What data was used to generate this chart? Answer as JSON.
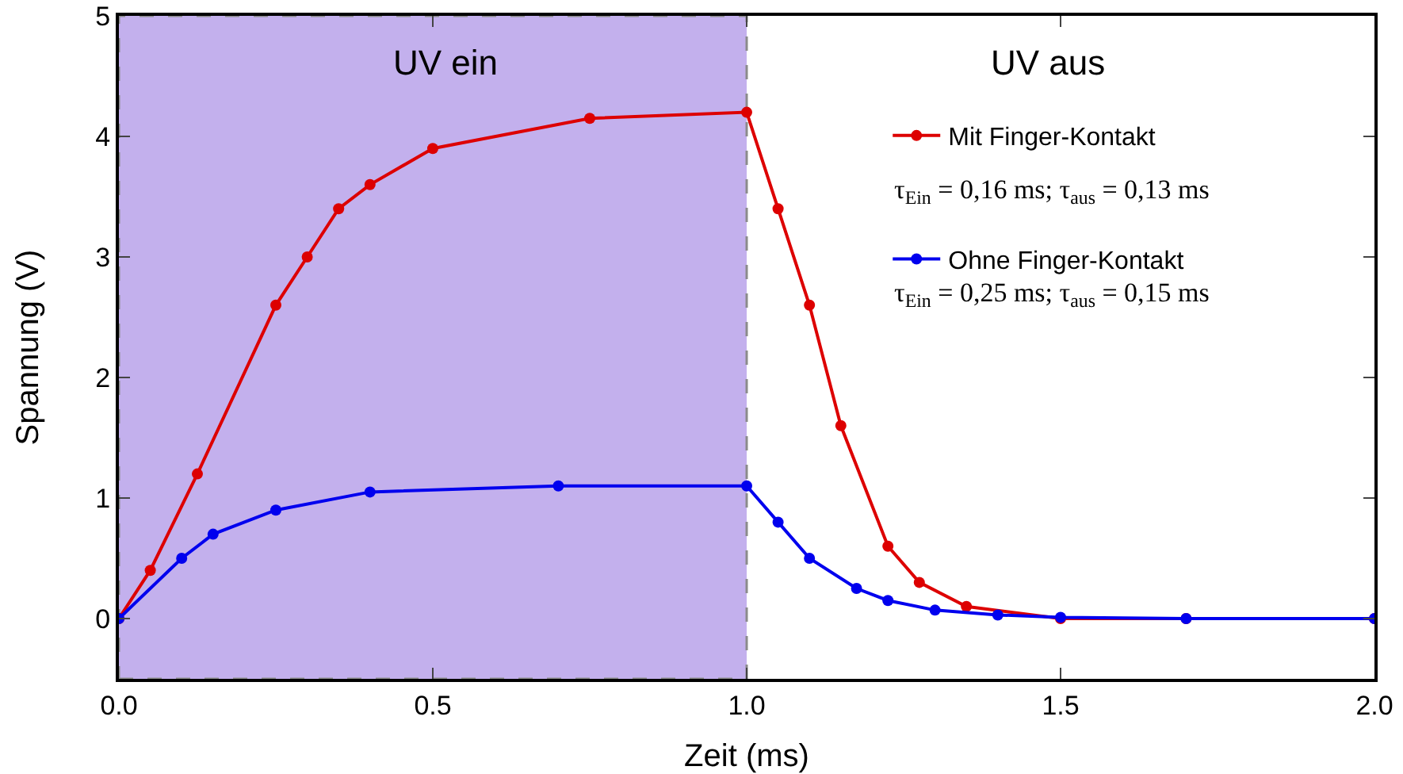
{
  "chart_data": {
    "type": "line",
    "xlabel": "Zeit (ms)",
    "ylabel": "Spannung (V)",
    "xlim": [
      0,
      2
    ],
    "ylim": [
      -0.5,
      5
    ],
    "xticks": [
      {
        "value": 0,
        "label": "0.0"
      },
      {
        "value": 0.5,
        "label": "0.5"
      },
      {
        "value": 1,
        "label": "1.0"
      },
      {
        "value": 1.5,
        "label": "1.5"
      },
      {
        "value": 2,
        "label": "2.0"
      }
    ],
    "yticks": [
      0,
      1,
      2,
      3,
      4,
      5
    ],
    "grid": false,
    "legend": "top right",
    "marker": "circle",
    "line_style": "solid",
    "series": [
      {
        "name": "Mit Finger-Kontakt",
        "color": "#dd0000",
        "x": [
          0,
          0.05,
          0.125,
          0.25,
          0.3,
          0.35,
          0.4,
          0.5,
          0.75,
          1.0,
          1.05,
          1.1,
          1.15,
          1.225,
          1.275,
          1.35,
          1.5,
          1.7,
          2.0
        ],
        "values": [
          0,
          0.4,
          1.2,
          2.6,
          3.0,
          3.4,
          3.6,
          3.9,
          4.15,
          4.2,
          3.4,
          2.6,
          1.6,
          0.6,
          0.3,
          0.1,
          0,
          0,
          0
        ]
      },
      {
        "name": "Ohne Finger-Kontakt",
        "color": "#0000ee",
        "x": [
          0,
          0.1,
          0.15,
          0.25,
          0.4,
          0.7,
          1.0,
          1.05,
          1.1,
          1.175,
          1.225,
          1.3,
          1.4,
          1.5,
          1.7,
          2.0
        ],
        "values": [
          0,
          0.5,
          0.7,
          0.9,
          1.05,
          1.1,
          1.1,
          0.8,
          0.5,
          0.25,
          0.15,
          0.07,
          0.03,
          0.01,
          0,
          0
        ]
      }
    ],
    "bands": [
      {
        "axis": "x",
        "from": 0,
        "to": 1,
        "color": "#7b52d9"
      }
    ],
    "annotations": [
      "UV ein",
      "UV aus",
      "τ$_{Ein}$ = 0,16 ms; τ$_{aus}$ = 0,13 ms",
      "τ$_{Ein}$ = 0,25 ms; τ$_{aus}$ = 0,15 ms"
    ]
  }
}
